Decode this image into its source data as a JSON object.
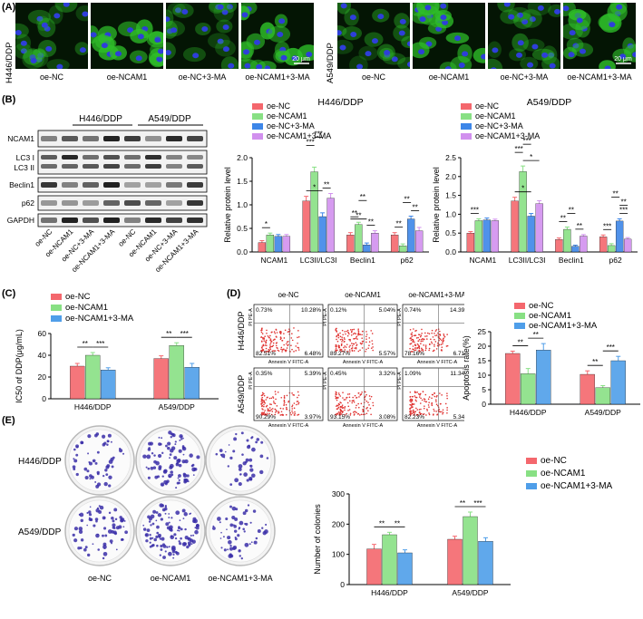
{
  "panel_labels": {
    "A": "(A)",
    "B": "(B)",
    "C": "(C)",
    "D": "(D)",
    "E": "(E)"
  },
  "colors": {
    "nc": "#f4676d",
    "ncam1": "#88e084",
    "ncam3ma": "#4f9ee9",
    "nc3ma": "#3d86e8",
    "ncam3ma_b": "#d190ee"
  },
  "panel_a": {
    "row_labels": [
      "H446/DDP",
      "A549/DDP"
    ],
    "conditions": [
      "oe-NC",
      "oe-NCAM1",
      "oe-NC+3-MA",
      "oe-NCAM1+3-MA"
    ],
    "scale_bar": "20 μm"
  },
  "panel_b": {
    "blot_groups": [
      "H446/DDP",
      "A549/DDP"
    ],
    "blot_rows": [
      "NCAM1",
      "LC3 I\nLC3 II",
      "Beclin1",
      "p62",
      "GAPDH"
    ],
    "lane_labels": [
      "oe-NC",
      "oe-NCAM1",
      "oe-NC+3-MA",
      "oe-NCAM1+3-MA",
      "oe-NC",
      "oe-NCAM1",
      "oe-NC+3-MA",
      "oe-NCAM1+3-MA"
    ],
    "legend": [
      "oe-NC",
      "oe-NCAM1",
      "oe-NC+3-MA",
      "oe-NCAM1+3-MA"
    ]
  },
  "panel_c_legend": [
    "oe-NC",
    "oe-NCAM1",
    "oe-NCAM1+3-MA"
  ],
  "panel_d": {
    "rows": [
      "H446/DDP",
      "A549/DDP"
    ],
    "cols": [
      "oe-NC",
      "oe-NCAM1",
      "oe-NCAM1+3-MA"
    ],
    "xaxis": "Annexin V FITC-A",
    "yaxis": "PI PE-A",
    "quadrants": [
      [
        [
          "0.73%",
          "10.28%",
          "82.51%",
          "6.48%"
        ],
        [
          "0.12%",
          "5.04%",
          "89.27%",
          "5.57%"
        ],
        [
          "0.74%",
          "14.39%",
          "78.16%",
          "6.71%"
        ]
      ],
      [
        [
          "0.35%",
          "5.39%",
          "90.29%",
          "3.97%"
        ],
        [
          "0.45%",
          "3.32%",
          "93.15%",
          "3.08%"
        ],
        [
          "1.09%",
          "11.34%",
          "82.23%",
          "5.34%"
        ]
      ]
    ],
    "legend": [
      "oe-NC",
      "oe-NCAM1",
      "oe-NCAM1+3-MA"
    ]
  },
  "panel_e": {
    "rows": [
      "H446/DDP",
      "A549/DDP"
    ],
    "cols": [
      "oe-NC",
      "oe-NCAM1",
      "oe-NCAM1+3-MA"
    ],
    "legend": [
      "oe-NC",
      "oe-NCAM1",
      "oe-NCAM1+3-MA"
    ]
  },
  "chart_data": [
    {
      "id": "b1",
      "type": "bar",
      "title": "H446/DDP",
      "ylabel": "Relative protein level",
      "ylim": [
        0,
        2.0
      ],
      "yticks": [
        "0.0",
        "0.5",
        "1.0",
        "1.5",
        "2.0"
      ],
      "categories": [
        "NCAM1",
        "LC3II/LC3I",
        "Beclin1",
        "p62"
      ],
      "series": [
        {
          "name": "oe-NC",
          "values": [
            0.2,
            1.08,
            0.36,
            0.36
          ],
          "err": [
            0.04,
            0.1,
            0.05,
            0.05
          ]
        },
        {
          "name": "oe-NCAM1",
          "values": [
            0.36,
            1.7,
            0.58,
            0.13
          ],
          "err": [
            0.04,
            0.1,
            0.05,
            0.04
          ]
        },
        {
          "name": "oe-NC+3-MA",
          "values": [
            0.33,
            0.75,
            0.15,
            0.7
          ],
          "err": [
            0.04,
            0.08,
            0.04,
            0.06
          ]
        },
        {
          "name": "oe-NCAM1+3-MA",
          "values": [
            0.33,
            1.14,
            0.4,
            0.45
          ],
          "err": [
            0.04,
            0.1,
            0.05,
            0.07
          ]
        }
      ],
      "sig": [
        "*",
        "***",
        "*",
        "***",
        "**",
        "**",
        "**",
        "**",
        "**",
        "**",
        "**",
        "**"
      ]
    },
    {
      "id": "b2",
      "type": "bar",
      "title": "A549/DDP",
      "ylabel": "Relative protein level",
      "ylim": [
        0,
        2.5
      ],
      "yticks": [
        "0.0",
        "0.5",
        "1.0",
        "1.5",
        "2.0",
        "2.5"
      ],
      "categories": [
        "NCAM1",
        "LC3II/LC3I",
        "Beclin1",
        "p62"
      ],
      "series": [
        {
          "name": "oe-NC",
          "values": [
            0.5,
            1.35,
            0.33,
            0.4
          ],
          "err": [
            0.04,
            0.1,
            0.04,
            0.05
          ]
        },
        {
          "name": "oe-NCAM1",
          "values": [
            0.83,
            2.13,
            0.6,
            0.17
          ],
          "err": [
            0.05,
            0.15,
            0.06,
            0.05
          ]
        },
        {
          "name": "oe-NC+3-MA",
          "values": [
            0.85,
            0.95,
            0.15,
            0.82
          ],
          "err": [
            0.05,
            0.07,
            0.03,
            0.06
          ]
        },
        {
          "name": "oe-NCAM1+3-MA",
          "values": [
            0.83,
            1.28,
            0.42,
            0.34
          ],
          "err": [
            0.04,
            0.08,
            0.04,
            0.04
          ]
        }
      ],
      "sig": [
        "***",
        "***",
        "*",
        "***",
        "*",
        "**",
        "**",
        "**",
        "***",
        "**",
        "**",
        "***"
      ]
    },
    {
      "id": "c",
      "type": "bar",
      "ylabel": "IC50 of DDP(μg/mL)",
      "ylim": [
        0,
        60
      ],
      "yticks": [
        "0",
        "20",
        "40",
        "60"
      ],
      "categories": [
        "H446/DDP",
        "A549/DDP"
      ],
      "series": [
        {
          "name": "oe-NC",
          "values": [
            30,
            37
          ],
          "err": [
            2.5,
            2.5
          ]
        },
        {
          "name": "oe-NCAM1",
          "values": [
            40,
            49
          ],
          "err": [
            2.5,
            2.5
          ]
        },
        {
          "name": "oe-NCAM1+3-MA",
          "values": [
            26.5,
            29
          ],
          "err": [
            2,
            3.5
          ]
        }
      ],
      "sig": [
        "**",
        "***",
        "**",
        "***"
      ]
    },
    {
      "id": "d",
      "type": "bar",
      "ylabel": "Apoptosis rate(%)",
      "ylim": [
        0,
        25
      ],
      "yticks": [
        "0",
        "5",
        "10",
        "15",
        "20",
        "25"
      ],
      "categories": [
        "H446/DDP",
        "A549/DDP"
      ],
      "series": [
        {
          "name": "oe-NC",
          "values": [
            17.5,
            10.3
          ],
          "err": [
            0.8,
            1.2
          ]
        },
        {
          "name": "oe-NCAM1",
          "values": [
            10.5,
            5.7
          ],
          "err": [
            1.8,
            0.7
          ]
        },
        {
          "name": "oe-NCAM1+3-MA",
          "values": [
            18.7,
            15
          ],
          "err": [
            2.2,
            1.5
          ]
        }
      ],
      "sig": [
        "**",
        "**",
        "**",
        "***"
      ]
    },
    {
      "id": "e",
      "type": "bar",
      "ylabel": "Number of colonies",
      "ylim": [
        0,
        300
      ],
      "yticks": [
        "0",
        "100",
        "200",
        "300"
      ],
      "categories": [
        "H446/DDP",
        "A549/DDP"
      ],
      "series": [
        {
          "name": "oe-NC",
          "values": [
            118,
            150
          ],
          "err": [
            15,
            10
          ]
        },
        {
          "name": "oe-NCAM1",
          "values": [
            165,
            225
          ],
          "err": [
            8,
            15
          ]
        },
        {
          "name": "oe-NCAM1+3-MA",
          "values": [
            105,
            143
          ],
          "err": [
            10,
            12
          ]
        }
      ],
      "sig": [
        "**",
        "**",
        "**",
        "***"
      ]
    }
  ]
}
